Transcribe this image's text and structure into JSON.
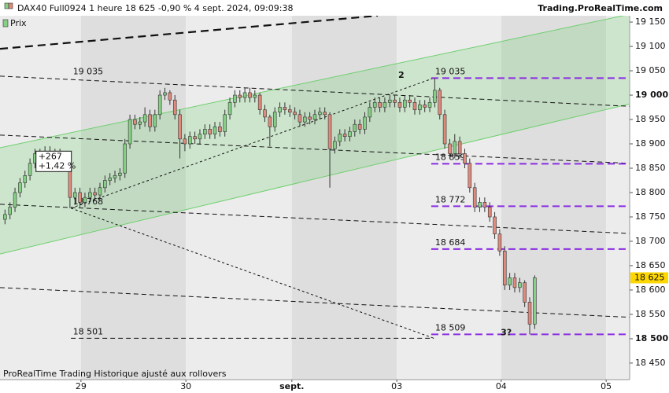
{
  "chart_data": {
    "type": "candlestick",
    "title": "DAX40 Full0924 1 heure 18 625 -0,90 % 4 sept. 2024, 09:09:38",
    "source": "Trading.ProRealTime.com",
    "footer": "ProRealTime Trading  Historique ajusté aux rollovers",
    "legend": "Prix",
    "up_color": "#86cf86",
    "down_color": "#e08a7e",
    "ylim": [
      18416,
      19163
    ],
    "xlim": [
      0,
      126
    ],
    "yticks": [
      {
        "value": 19150,
        "label": "19 150"
      },
      {
        "value": 19100,
        "label": "19 100"
      },
      {
        "value": 19050,
        "label": "19 050"
      },
      {
        "value": 19000,
        "label": "19 000"
      },
      {
        "value": 18950,
        "label": "18 950"
      },
      {
        "value": 18900,
        "label": "18 900"
      },
      {
        "value": 18850,
        "label": "18 850"
      },
      {
        "value": 18800,
        "label": "18 800"
      },
      {
        "value": 18750,
        "label": "18 750"
      },
      {
        "value": 18700,
        "label": "18 700"
      },
      {
        "value": 18650,
        "label": "18 650"
      },
      {
        "value": 18600,
        "label": "18 600"
      },
      {
        "value": 18550,
        "label": "18 550"
      },
      {
        "value": 18500,
        "label": "18 500"
      },
      {
        "value": 18450,
        "label": "18 450"
      }
    ],
    "xticks": [
      {
        "value": 16.2,
        "label": "29"
      },
      {
        "value": 37.2,
        "label": "30"
      },
      {
        "value": 58.4,
        "label": "sept."
      },
      {
        "value": 79.4,
        "label": "03"
      },
      {
        "value": 100.3,
        "label": "04"
      },
      {
        "value": 121.3,
        "label": "05"
      }
    ],
    "x": [
      1,
      2,
      3,
      4,
      5,
      6,
      7,
      8,
      9,
      10,
      11,
      12,
      13,
      14,
      15,
      16,
      17,
      18,
      19,
      20,
      21,
      22,
      23,
      24,
      25,
      26,
      27,
      28,
      29,
      30,
      31,
      32,
      33,
      34,
      35,
      36,
      37,
      38,
      39,
      40,
      41,
      42,
      43,
      44,
      45,
      46,
      47,
      48,
      49,
      50,
      51,
      52,
      53,
      54,
      55,
      56,
      57,
      58,
      59,
      60,
      61,
      62,
      63,
      64,
      65,
      66,
      67,
      68,
      69,
      70,
      71,
      72,
      73,
      74,
      75,
      76,
      77,
      78,
      79,
      80,
      81,
      82,
      83,
      84,
      85,
      86,
      87,
      88,
      89,
      90,
      91,
      92,
      93,
      94,
      95,
      96,
      97,
      98,
      99,
      100,
      101,
      102,
      103,
      104,
      105,
      106,
      107
    ],
    "candles": [
      [
        18745,
        18765,
        18735,
        18755
      ],
      [
        18755,
        18780,
        18745,
        18770
      ],
      [
        18770,
        18810,
        18760,
        18800
      ],
      [
        18800,
        18830,
        18790,
        18820
      ],
      [
        18820,
        18845,
        18810,
        18835
      ],
      [
        18835,
        18870,
        18825,
        18860
      ],
      [
        18860,
        18890,
        18850,
        18880
      ],
      [
        18880,
        18890,
        18860,
        18870
      ],
      [
        18870,
        18895,
        18860,
        18885
      ],
      [
        18885,
        18895,
        18865,
        18875
      ],
      [
        18875,
        18890,
        18865,
        18880
      ],
      [
        18880,
        18890,
        18850,
        18860
      ],
      [
        18860,
        18870,
        18845,
        18855
      ],
      [
        18855,
        18860,
        18768,
        18790
      ],
      [
        18790,
        18810,
        18775,
        18800
      ],
      [
        18800,
        18810,
        18770,
        18780
      ],
      [
        18780,
        18800,
        18770,
        18790
      ],
      [
        18790,
        18810,
        18780,
        18800
      ],
      [
        18800,
        18810,
        18785,
        18795
      ],
      [
        18795,
        18820,
        18785,
        18810
      ],
      [
        18810,
        18835,
        18800,
        18825
      ],
      [
        18825,
        18840,
        18815,
        18830
      ],
      [
        18830,
        18845,
        18820,
        18835
      ],
      [
        18835,
        18850,
        18825,
        18840
      ],
      [
        18840,
        18910,
        18830,
        18900
      ],
      [
        18900,
        18960,
        18890,
        18950
      ],
      [
        18950,
        18960,
        18930,
        18940
      ],
      [
        18940,
        18955,
        18930,
        18945
      ],
      [
        18945,
        18975,
        18935,
        18960
      ],
      [
        18960,
        18970,
        18925,
        18935
      ],
      [
        18935,
        18970,
        18925,
        18960
      ],
      [
        18960,
        19010,
        18950,
        19000
      ],
      [
        19000,
        19015,
        18990,
        19005
      ],
      [
        19005,
        19010,
        18980,
        18990
      ],
      [
        18990,
        19000,
        18950,
        18960
      ],
      [
        18960,
        18970,
        18870,
        18910
      ],
      [
        18910,
        18920,
        18885,
        18900
      ],
      [
        18900,
        18925,
        18890,
        18915
      ],
      [
        18915,
        18925,
        18900,
        18910
      ],
      [
        18910,
        18930,
        18900,
        18920
      ],
      [
        18920,
        18940,
        18910,
        18930
      ],
      [
        18930,
        18940,
        18910,
        18920
      ],
      [
        18920,
        18945,
        18910,
        18935
      ],
      [
        18935,
        18945,
        18915,
        18925
      ],
      [
        18925,
        18970,
        18915,
        18960
      ],
      [
        18960,
        18995,
        18950,
        18985
      ],
      [
        18985,
        19010,
        18975,
        19000
      ],
      [
        19000,
        19010,
        18985,
        18995
      ],
      [
        18995,
        19015,
        18985,
        19005
      ],
      [
        19005,
        19015,
        18985,
        18995
      ],
      [
        18995,
        19010,
        18985,
        19000
      ],
      [
        19000,
        19005,
        18960,
        18970
      ],
      [
        18970,
        18980,
        18945,
        18955
      ],
      [
        18955,
        18960,
        18895,
        18935
      ],
      [
        18935,
        18975,
        18925,
        18965
      ],
      [
        18965,
        18985,
        18955,
        18975
      ],
      [
        18975,
        18985,
        18960,
        18970
      ],
      [
        18970,
        18980,
        18955,
        18965
      ],
      [
        18965,
        18975,
        18950,
        18960
      ],
      [
        18960,
        18970,
        18935,
        18945
      ],
      [
        18945,
        18965,
        18935,
        18955
      ],
      [
        18955,
        18965,
        18940,
        18950
      ],
      [
        18950,
        18970,
        18940,
        18960
      ],
      [
        18960,
        18975,
        18950,
        18965
      ],
      [
        18965,
        18975,
        18950,
        18960
      ],
      [
        18960,
        18965,
        18810,
        18890
      ],
      [
        18890,
        18915,
        18880,
        18905
      ],
      [
        18905,
        18930,
        18895,
        18920
      ],
      [
        18920,
        18930,
        18905,
        18915
      ],
      [
        18915,
        18935,
        18905,
        18925
      ],
      [
        18925,
        18950,
        18915,
        18940
      ],
      [
        18940,
        18950,
        18920,
        18930
      ],
      [
        18930,
        18965,
        18920,
        18955
      ],
      [
        18955,
        18985,
        18945,
        18975
      ],
      [
        18975,
        18995,
        18965,
        18985
      ],
      [
        18985,
        18995,
        18965,
        18975
      ],
      [
        18975,
        18995,
        18965,
        18985
      ],
      [
        18985,
        19000,
        18975,
        18990
      ],
      [
        18990,
        19000,
        18975,
        18985
      ],
      [
        18985,
        18995,
        18965,
        18975
      ],
      [
        18975,
        19000,
        18965,
        18990
      ],
      [
        18990,
        19000,
        18975,
        18985
      ],
      [
        18985,
        18995,
        18960,
        18970
      ],
      [
        18970,
        18990,
        18960,
        18980
      ],
      [
        18980,
        18990,
        18965,
        18975
      ],
      [
        18975,
        18995,
        18965,
        18985
      ],
      [
        18985,
        19035,
        18975,
        19010
      ],
      [
        19010,
        19015,
        18950,
        18960
      ],
      [
        18960,
        18970,
        18890,
        18900
      ],
      [
        18900,
        18910,
        18870,
        18880
      ],
      [
        18880,
        18920,
        18870,
        18905
      ],
      [
        18905,
        18915,
        18870,
        18880
      ],
      [
        18880,
        18890,
        18850,
        18860
      ],
      [
        18860,
        18870,
        18800,
        18810
      ],
      [
        18810,
        18820,
        18760,
        18770
      ],
      [
        18770,
        18790,
        18760,
        18780
      ],
      [
        18780,
        18790,
        18760,
        18770
      ],
      [
        18770,
        18780,
        18740,
        18750
      ],
      [
        18750,
        18760,
        18705,
        18715
      ],
      [
        18715,
        18725,
        18670,
        18680
      ],
      [
        18680,
        18690,
        18600,
        18610
      ],
      [
        18610,
        18635,
        18600,
        18625
      ],
      [
        18625,
        18635,
        18595,
        18605
      ],
      [
        18605,
        18625,
        18595,
        18615
      ],
      [
        18615,
        18620,
        18565,
        18575
      ],
      [
        18575,
        18585,
        18509,
        18530
      ],
      [
        18530,
        18630,
        18520,
        18625
      ]
    ],
    "channel": {
      "color": "#6fcf6f",
      "upper": {
        "x": [
          0,
          126
        ],
        "y": [
          18892,
          19166
        ]
      },
      "lower": {
        "x": [
          0,
          126
        ],
        "y": [
          18674,
          18982
        ]
      }
    },
    "trendlines": [
      {
        "x": [
          0,
          75.6
        ],
        "y": [
          19095,
          19163
        ],
        "style": "thick"
      },
      {
        "x": [
          0,
          126
        ],
        "y": [
          19039,
          18977
        ],
        "style": "dashed"
      },
      {
        "x": [
          0,
          126
        ],
        "y": [
          18918,
          18860
        ],
        "style": "dashed"
      },
      {
        "x": [
          0,
          126
        ],
        "y": [
          18776,
          18716
        ],
        "style": "dashed"
      },
      {
        "x": [
          0,
          126
        ],
        "y": [
          18605,
          18544
        ],
        "style": "dashed"
      },
      {
        "x": [
          14.2,
          86.8
        ],
        "y": [
          18501,
          18501
        ],
        "style": "dashed"
      },
      {
        "x": [
          14.2,
          86.8
        ],
        "y": [
          18768,
          19035
        ],
        "style": "dotted"
      },
      {
        "x": [
          14.2,
          86.8
        ],
        "y": [
          18768,
          18501
        ],
        "style": "dotted"
      }
    ],
    "levels": {
      "color": "#8a2be2",
      "x_start": 86.3,
      "items": [
        {
          "value": 19035,
          "label": "19 035"
        },
        {
          "value": 18859,
          "label": "18 859"
        },
        {
          "value": 18772,
          "label": "18 772"
        },
        {
          "value": 18684,
          "label": "18 684"
        },
        {
          "value": 18509,
          "label": "18 509"
        }
      ]
    },
    "left_labels": [
      {
        "x": 14.6,
        "value": 19035,
        "label": "19 035"
      },
      {
        "x": 14.6,
        "value": 18768,
        "label": "18 768"
      },
      {
        "x": 14.6,
        "value": 18501,
        "label": "18 501"
      }
    ],
    "annotations": [
      {
        "text": "2",
        "x": 80.3,
        "y": 19040
      },
      {
        "text": "3?",
        "x": 101.3,
        "y": 18512
      }
    ],
    "change_box": {
      "x": 7.2,
      "y": 18885,
      "lines": [
        "+267",
        "+1,42 %"
      ]
    },
    "last_price": {
      "value": 18625,
      "label": "18 625"
    }
  }
}
